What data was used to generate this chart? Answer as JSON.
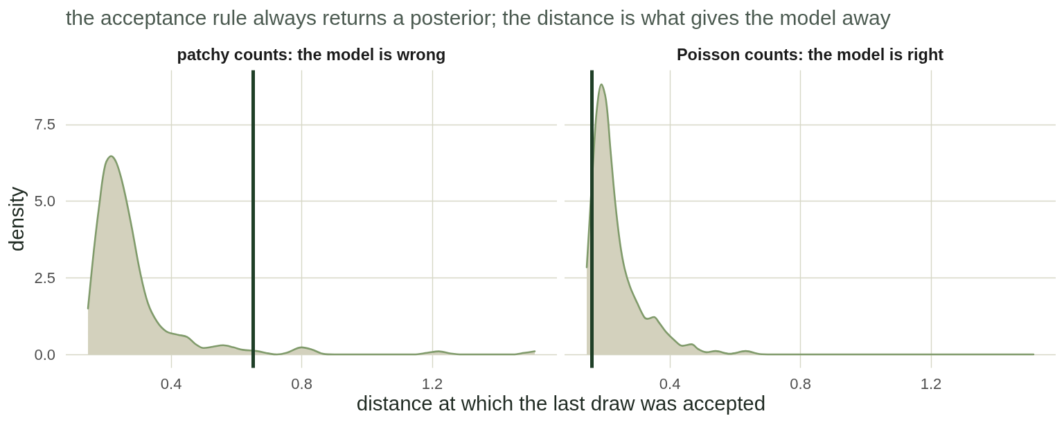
{
  "chart_data": [
    {
      "type": "area",
      "title": "the acceptance rule always returns a posterior; the distance is what gives the model away",
      "subtitle": "patchy counts: the model is wrong",
      "xlabel": "distance at which the last draw was accepted",
      "ylabel": "density",
      "x": [
        0.145,
        0.163,
        0.18,
        0.198,
        0.216,
        0.233,
        0.254,
        0.279,
        0.304,
        0.329,
        0.357,
        0.385,
        0.421,
        0.449,
        0.474,
        0.499,
        0.527,
        0.559,
        0.591,
        0.619,
        0.661,
        0.704,
        0.724,
        0.753,
        0.8,
        0.831,
        0.865,
        0.9,
        1.144,
        1.184,
        1.22,
        1.257,
        1.291,
        1.448,
        1.482,
        1.514
      ],
      "series": [
        {
          "color": "#809b6b",
          "values": [
            1.5,
            3.4,
            4.91,
            6.19,
            6.47,
            6.23,
            5.44,
            4.15,
            2.72,
            1.66,
            1.06,
            0.75,
            0.64,
            0.57,
            0.34,
            0.21,
            0.25,
            0.3,
            0.23,
            0.15,
            0.11,
            0.02,
            0.0,
            0.05,
            0.23,
            0.16,
            0.02,
            0.0,
            0.0,
            0.05,
            0.1,
            0.03,
            0.0,
            0.0,
            0.05,
            0.1
          ]
        }
      ],
      "xlim": [
        0.077,
        1.582
      ],
      "xticks": [
        0.4,
        0.8,
        1.2
      ],
      "ylim": [
        -0.44,
        9.27
      ],
      "yticks": [
        {
          "value": 0,
          "label": "0.0"
        },
        2.5,
        {
          "value": 5,
          "label": "5.0"
        },
        7.5
      ],
      "grid": true,
      "ref_lines": [
        {
          "axis": "x",
          "value": 0.648,
          "color": "#1f3f27"
        }
      ]
    },
    {
      "type": "area",
      "title": "Poisson counts: the model is right",
      "x": [
        0.145,
        0.165,
        0.176,
        0.19,
        0.204,
        0.218,
        0.232,
        0.247,
        0.261,
        0.278,
        0.3,
        0.321,
        0.331,
        0.351,
        0.367,
        0.388,
        0.413,
        0.438,
        0.466,
        0.487,
        0.512,
        0.54,
        0.583,
        0.632,
        0.675,
        0.71,
        1.514
      ],
      "series": [
        {
          "color": "#809b6b",
          "values": [
            2.84,
            6.34,
            8.0,
            8.81,
            8.3,
            6.64,
            4.99,
            3.63,
            2.8,
            2.2,
            1.67,
            1.22,
            1.16,
            1.22,
            1.03,
            0.73,
            0.47,
            0.28,
            0.33,
            0.17,
            0.07,
            0.11,
            0.02,
            0.11,
            0.01,
            0.0,
            0.0
          ]
        }
      ],
      "xlim": [
        0.077,
        1.582
      ],
      "xticks": [
        0.4,
        0.8,
        1.2
      ],
      "ylim": [
        -0.44,
        9.27
      ],
      "yticks": [
        0,
        2.5,
        5,
        7.5
      ],
      "grid": true,
      "tick_labels": "x",
      "ref_lines": [
        {
          "axis": "x",
          "value": 0.157,
          "color": "#1f3f27"
        }
      ]
    }
  ]
}
